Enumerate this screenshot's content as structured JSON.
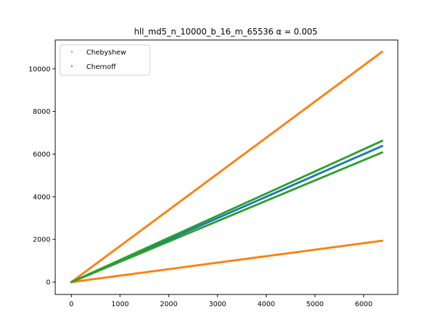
{
  "chart_data": {
    "type": "scatter",
    "title": "hll_md5_n_10000_b_16_m_65536 α = 0.005",
    "xlabel": "",
    "ylabel": "",
    "xlim": [
      -330,
      6700
    ],
    "ylim": [
      -580,
      11350
    ],
    "x_ticks": [
      0,
      1000,
      2000,
      3000,
      4000,
      5000,
      6000
    ],
    "y_ticks": [
      0,
      2000,
      4000,
      6000,
      8000,
      10000
    ],
    "x_tick_labels": [
      "0",
      "1000",
      "2000",
      "3000",
      "4000",
      "5000",
      "6000"
    ],
    "y_tick_labels": [
      "0",
      "2000",
      "4000",
      "6000",
      "8000",
      "10000"
    ],
    "grid": false,
    "legend": {
      "placement": "top-left",
      "entries": [
        "Chebyshew",
        "Chernoff"
      ]
    },
    "series": [
      {
        "name": "",
        "color": "#1f77b4",
        "segments": [
          {
            "x": [
              0,
              6380
            ],
            "y": [
              0,
              6380
            ]
          }
        ]
      },
      {
        "name": "Chebyshew",
        "color": "#ff7f0e",
        "segments": [
          {
            "x": [
              0,
              6380
            ],
            "y": [
              0,
              10800
            ]
          },
          {
            "x": [
              0,
              6380
            ],
            "y": [
              0,
              1940
            ]
          }
        ]
      },
      {
        "name": "Chernoff",
        "color": "#2ca02c",
        "segments": [
          {
            "x": [
              0,
              6380
            ],
            "y": [
              0,
              6620
            ]
          },
          {
            "x": [
              0,
              6380
            ],
            "y": [
              0,
              6080
            ]
          }
        ]
      }
    ]
  }
}
